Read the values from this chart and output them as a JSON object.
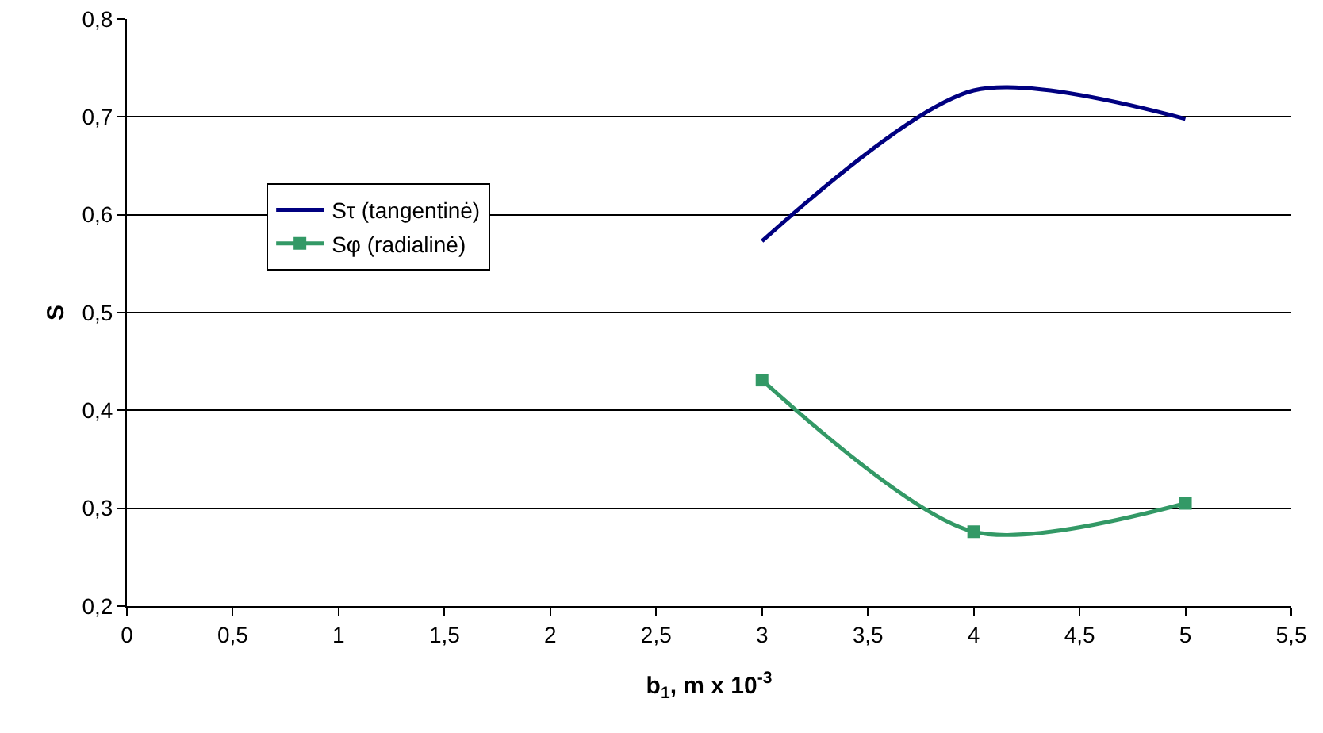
{
  "chart_data": {
    "type": "line",
    "xlabel": "b$_{1}$, m x 10$^{-3}$",
    "ylabel": "S",
    "x": [
      3,
      4,
      5
    ],
    "series": [
      {
        "name": "Sτ (tangentinė)",
        "color": "#000080",
        "values": [
          0.573,
          0.727,
          0.698
        ],
        "marker": "none"
      },
      {
        "name": "Sφ (radialinė)",
        "color": "#339966",
        "values": [
          0.431,
          0.276,
          0.305
        ],
        "marker": "square"
      }
    ],
    "xlim": [
      0,
      5.5
    ],
    "xticks": [
      0,
      {
        "value": 0.5,
        "label": "0,5"
      },
      1,
      {
        "value": 1.5,
        "label": "1,5"
      },
      2,
      {
        "value": 2.5,
        "label": "2,5"
      },
      3,
      {
        "value": 3.5,
        "label": "3,5"
      },
      4,
      {
        "value": 4.5,
        "label": "4,5"
      },
      5,
      {
        "value": 5.5,
        "label": "5,5"
      }
    ],
    "ylim": [
      0.2,
      0.8
    ],
    "yticks": [
      {
        "value": 0.2,
        "label": "0,2"
      },
      {
        "value": 0.3,
        "label": "0,3"
      },
      {
        "value": 0.4,
        "label": "0,4"
      },
      {
        "value": 0.5,
        "label": "0,5"
      },
      {
        "value": 0.6,
        "label": "0,6"
      },
      {
        "value": 0.7,
        "label": "0,7"
      },
      {
        "value": 0.8,
        "label": "0,8"
      }
    ],
    "grid": "y",
    "legend": "left",
    "line_style": "solid"
  }
}
